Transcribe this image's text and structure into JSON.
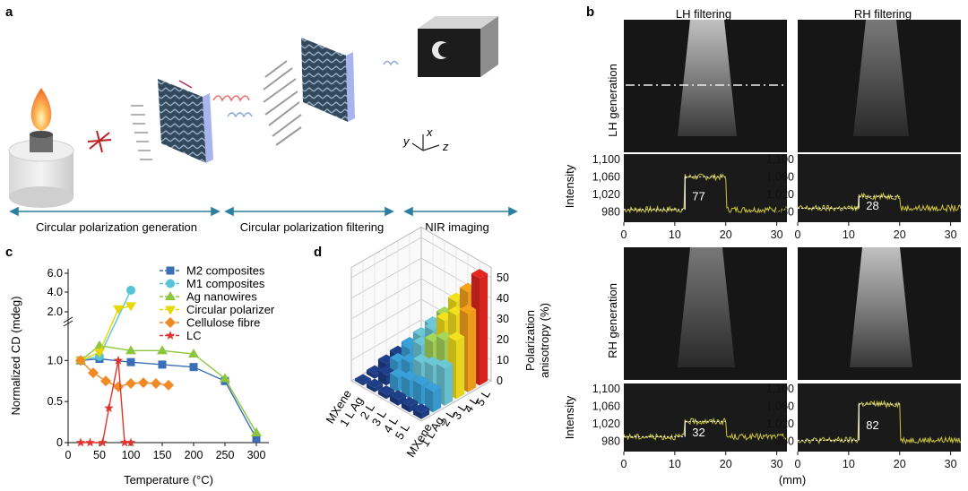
{
  "panel_labels": {
    "a": "a",
    "b": "b",
    "c": "c",
    "d": "d"
  },
  "panel_a": {
    "sections": [
      "Circular polarization generation",
      "Circular polarization filtering",
      "NIR imaging"
    ],
    "axes": {
      "x": "x",
      "y": "y",
      "z": "z"
    }
  },
  "panel_b": {
    "col_headers": [
      "LH filtering",
      "RH filtering"
    ],
    "row_labels": [
      "LH generation",
      "RH generation"
    ],
    "ylabel": "Intensity",
    "xlabel": "(mm)",
    "yticks": [
      "1,100",
      "1,060",
      "1,020",
      "980"
    ],
    "xticks": [
      "0",
      "10",
      "20",
      "30"
    ],
    "annotations": [
      "77",
      "28",
      "32",
      "82"
    ]
  },
  "chart_data": [
    {
      "type": "line",
      "title": "",
      "xlabel": "Temperature (°C)",
      "ylabel": "Normalized CD (mdeg)",
      "xlim": [
        0,
        320
      ],
      "xticks": [
        "0",
        "50",
        "100",
        "150",
        "200",
        "250",
        "300"
      ],
      "yticks": [
        "0",
        "0.5",
        "1.0",
        "2.0",
        "4.0",
        "6.0"
      ],
      "series": [
        {
          "name": "M2 composites",
          "color": "#3a6fb5",
          "x": [
            20,
            50,
            100,
            150,
            200,
            250,
            300
          ],
          "y": [
            1.0,
            1.02,
            0.98,
            0.95,
            0.92,
            0.75,
            0.05
          ]
        },
        {
          "name": "M1 composites",
          "color": "#56c3d9",
          "x": [
            20,
            50,
            100
          ],
          "y": [
            1.0,
            1.05,
            4.2
          ]
        },
        {
          "name": "Ag nanowires",
          "color": "#8cc63f",
          "x": [
            20,
            50,
            100,
            150,
            200,
            250,
            300
          ],
          "y": [
            1.0,
            1.18,
            1.12,
            1.12,
            1.08,
            0.78,
            0.12
          ]
        },
        {
          "name": "Circular polarizer",
          "color": "#e8d700",
          "x": [
            20,
            50,
            80,
            100
          ],
          "y": [
            1.0,
            1.1,
            2.3,
            2.6
          ]
        },
        {
          "name": "Cellulose fibre",
          "color": "#f08a24",
          "x": [
            20,
            40,
            60,
            80,
            100,
            120,
            140,
            160
          ],
          "y": [
            1.0,
            0.85,
            0.75,
            0.68,
            0.72,
            0.73,
            0.72,
            0.7
          ]
        },
        {
          "name": "LC",
          "color": "#e0342f",
          "x": [
            20,
            35,
            55,
            65,
            80,
            90,
            100
          ],
          "y": [
            0,
            0,
            0,
            0.42,
            1.0,
            0,
            0
          ]
        }
      ]
    },
    {
      "type": "bar3d",
      "zlabel": "Polarization anisotropy (%)",
      "zticks": [
        "0",
        "10",
        "20",
        "30",
        "40",
        "50"
      ],
      "rows": [
        "5 L",
        "4 L",
        "3 L",
        "2 L",
        "1 L Ag",
        "MXene"
      ],
      "cols": [
        "MXene",
        "1 L Ag",
        "2 L",
        "3 L",
        "4 L",
        "5 L"
      ],
      "values": [
        [
          3,
          10,
          18,
          28,
          38,
          52
        ],
        [
          3,
          10,
          16,
          25,
          34,
          42
        ],
        [
          3,
          9,
          14,
          21,
          28,
          34
        ],
        [
          2,
          7,
          11,
          16,
          20,
          24
        ],
        [
          2,
          5,
          8,
          11,
          14,
          16
        ],
        [
          1,
          2,
          4,
          5,
          6,
          7
        ]
      ]
    }
  ]
}
